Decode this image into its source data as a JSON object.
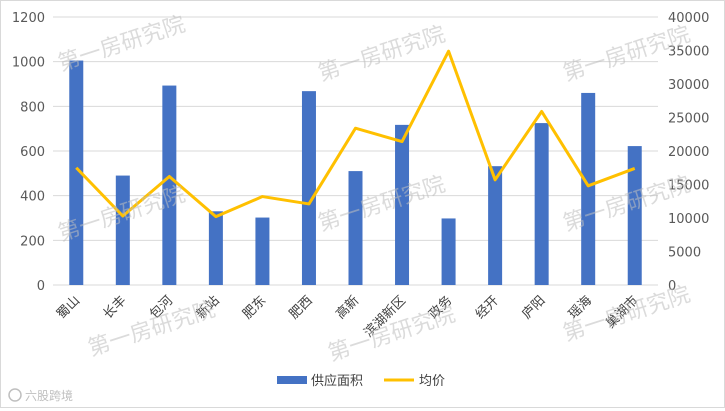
{
  "chart_data": {
    "type": "bar",
    "categories": [
      "蜀山",
      "长丰",
      "包河",
      "新站",
      "肥东",
      "肥西",
      "高新",
      "滨湖新区",
      "政务",
      "经开",
      "庐阳",
      "瑶海",
      "巢湖市"
    ],
    "series": [
      {
        "name": "供应面积",
        "type": "bar",
        "axis": "left",
        "color": "#4472c4",
        "values": [
          1005,
          490,
          893,
          330,
          302,
          868,
          510,
          717,
          298,
          532,
          725,
          860,
          622
        ]
      },
      {
        "name": "均价",
        "type": "line",
        "axis": "right",
        "color": "#ffc000",
        "values": [
          17500,
          10300,
          16200,
          10200,
          13200,
          12100,
          23400,
          21400,
          34900,
          15700,
          25900,
          14800,
          17400
        ]
      }
    ],
    "y_left": {
      "min": 0,
      "max": 1200,
      "ticks": [
        0,
        200,
        400,
        600,
        800,
        1000,
        1200
      ]
    },
    "y_right": {
      "min": 0,
      "max": 40000,
      "ticks": [
        0,
        5000,
        10000,
        15000,
        20000,
        25000,
        30000,
        35000,
        40000
      ]
    },
    "grid": true,
    "legend_position": "bottom"
  },
  "watermark": "第一房研究院",
  "corner_logo": "六股跨境"
}
